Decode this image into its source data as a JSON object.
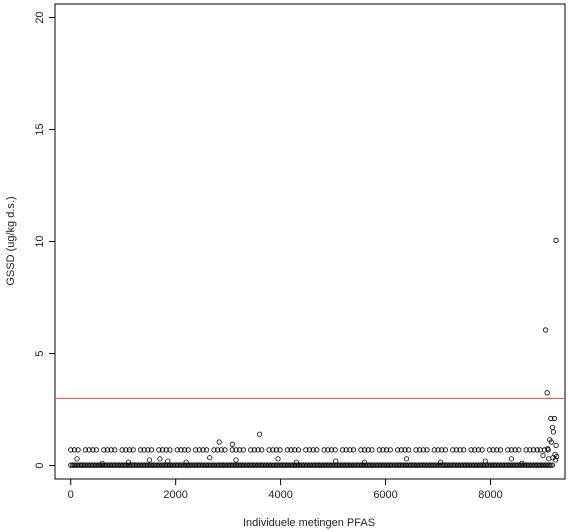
{
  "chart_data": {
    "type": "scatter",
    "title": "",
    "xlabel": "Individuele metingen PFAS",
    "ylabel": "GSSD (ug/kg d.s.)",
    "xlim": [
      -300,
      9420
    ],
    "ylim": [
      -0.6,
      20.6
    ],
    "x_ticks": [
      0,
      2000,
      4000,
      6000,
      8000
    ],
    "y_ticks": [
      0,
      5,
      10,
      15,
      20
    ],
    "reference_line": {
      "y": 3,
      "color": "#d9534f"
    },
    "marker": "open-circle",
    "marker_color": "#000000",
    "grid": false,
    "legend": "none",
    "bands": [
      {
        "x_range": [
          0,
          9200
        ],
        "y": 0.02,
        "note": "dense cluster of points near zero"
      },
      {
        "x_range": [
          0,
          9150
        ],
        "y": 0.7,
        "note": "repeated level near 0.7"
      }
    ],
    "points": [
      {
        "x": 2830,
        "y": 1.05
      },
      {
        "x": 3080,
        "y": 0.95
      },
      {
        "x": 3600,
        "y": 1.4
      },
      {
        "x": 9050,
        "y": 6.05
      },
      {
        "x": 9250,
        "y": 10.05
      },
      {
        "x": 9080,
        "y": 3.25
      },
      {
        "x": 9150,
        "y": 2.1
      },
      {
        "x": 9220,
        "y": 2.1
      },
      {
        "x": 9180,
        "y": 1.7
      },
      {
        "x": 9200,
        "y": 1.5
      },
      {
        "x": 9130,
        "y": 1.15
      },
      {
        "x": 9160,
        "y": 1.05
      },
      {
        "x": 9250,
        "y": 0.9
      },
      {
        "x": 9090,
        "y": 0.75
      },
      {
        "x": 9230,
        "y": 0.5
      },
      {
        "x": 9190,
        "y": 0.35
      },
      {
        "x": 9240,
        "y": 0.25
      },
      {
        "x": 9110,
        "y": 0.3
      },
      {
        "x": 9260,
        "y": 0.4
      },
      {
        "x": 9000,
        "y": 0.45
      },
      {
        "x": 8950,
        "y": 0.7
      },
      {
        "x": 1500,
        "y": 0.25
      },
      {
        "x": 1700,
        "y": 0.3
      },
      {
        "x": 1850,
        "y": 0.2
      },
      {
        "x": 2200,
        "y": 0.15
      },
      {
        "x": 2650,
        "y": 0.35
      },
      {
        "x": 3150,
        "y": 0.25
      },
      {
        "x": 3950,
        "y": 0.3
      },
      {
        "x": 4300,
        "y": 0.15
      },
      {
        "x": 5050,
        "y": 0.2
      },
      {
        "x": 5600,
        "y": 0.15
      },
      {
        "x": 6400,
        "y": 0.3
      },
      {
        "x": 7050,
        "y": 0.15
      },
      {
        "x": 7900,
        "y": 0.2
      },
      {
        "x": 8400,
        "y": 0.3
      },
      {
        "x": 600,
        "y": 0.1
      },
      {
        "x": 1100,
        "y": 0.15
      },
      {
        "x": 8600,
        "y": 0.1
      },
      {
        "x": 120,
        "y": 0.3
      }
    ]
  }
}
